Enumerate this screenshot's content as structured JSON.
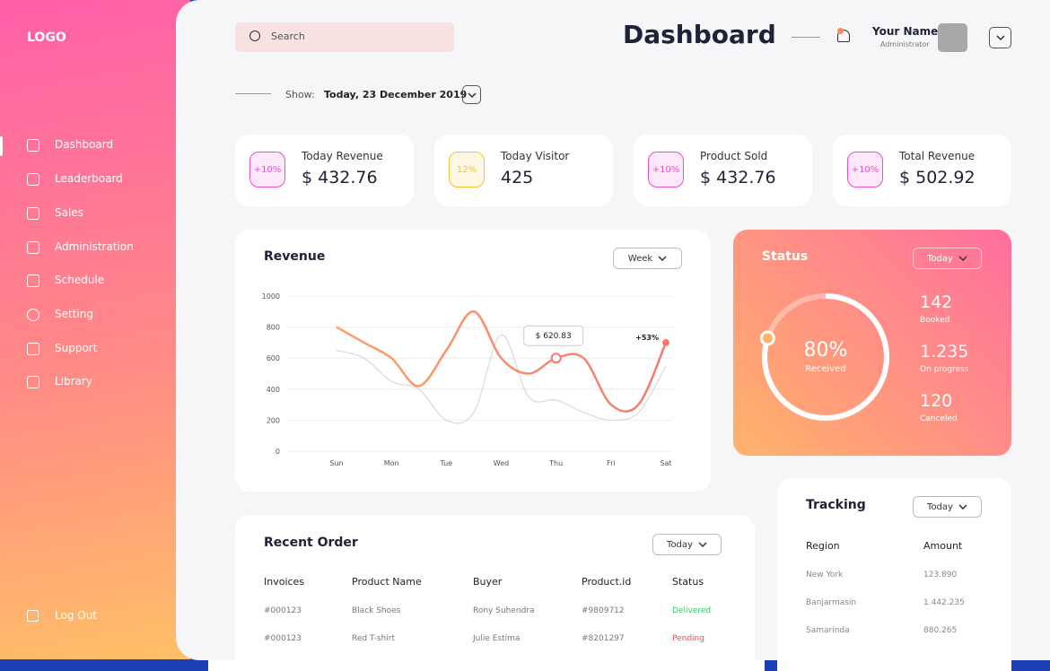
{
  "sidebar": {
    "logo": "LOGO",
    "menu": [
      "Dashboard",
      "Leaderboard",
      "Sales",
      "Administration",
      "Schedule",
      "Setting",
      "Support",
      "Library"
    ],
    "logout": "Log Out"
  },
  "header": {
    "search_placeholder": "Search",
    "title": "Dashboard",
    "user_name": "Your Name",
    "user_role": "Administrator",
    "show_label": "Show:",
    "show_date": "Today, 23 December 2019"
  },
  "stats": [
    {
      "badge": "+10%",
      "label": "Today Revenue",
      "value": "$ 432.76",
      "color": "#e84fcf"
    },
    {
      "badge": "12%",
      "label": "Today Visitor",
      "value": "425",
      "color": "#f2c230"
    },
    {
      "badge": "+10%",
      "label": "Product Sold",
      "value": "$ 432.76",
      "color": "#e84fcf"
    },
    {
      "badge": "+10%",
      "label": "Total Revenue",
      "value": "$ 502.92",
      "color": "#e84fcf"
    }
  ],
  "revenue": {
    "title": "Revenue",
    "filter": "Week",
    "chart_data": {
      "type": "line",
      "categories": [
        "Sun",
        null,
        "Mon",
        null,
        "Tue",
        null,
        "Wed",
        null,
        "Thu",
        null,
        "Fri",
        null,
        "Sat"
      ],
      "series": [
        {
          "color": "#f6786f",
          "values": [
            800,
            700,
            600,
            420,
            650,
            900,
            600,
            500,
            600,
            600,
            300,
            300,
            700
          ]
        },
        {
          "color": "#d9d9d9",
          "values": [
            650,
            600,
            450,
            400,
            200,
            250,
            750,
            350,
            330,
            250,
            200,
            250,
            550
          ]
        }
      ],
      "ylim": [
        0,
        1000
      ],
      "yticks": [
        0,
        200,
        400,
        600,
        800,
        1000
      ],
      "grid": true,
      "annotations": [
        {
          "text": "$ 620.83",
          "index": 8
        },
        {
          "text": "+53%",
          "index": 12
        }
      ]
    }
  },
  "status": {
    "title": "Status",
    "filter": "Today",
    "received": {
      "value": 80,
      "label": "80%"
    },
    "received_label": "Received",
    "items": [
      {
        "value": "142",
        "label": "Booked"
      },
      {
        "value": "1.235",
        "label": "On progress"
      },
      {
        "value": "120",
        "label": "Canceled"
      }
    ]
  },
  "tracking": {
    "title": "Tracking",
    "filter": "Today",
    "headers": [
      "Region",
      "Amount"
    ],
    "rows": [
      [
        "New York",
        "123.890"
      ],
      [
        "Banjarmasin",
        "1.442.235"
      ],
      [
        "Samarinda",
        "880.265"
      ]
    ]
  },
  "orders": {
    "title": "Recent Order",
    "filter": "Today",
    "headers": [
      "Invoices",
      "Product Name",
      "Buyer",
      "Product.id",
      "Status"
    ],
    "rows": [
      [
        "#000123",
        "Black Shoes",
        "Rony Suhendra",
        "#9809712",
        "Delivered"
      ],
      [
        "#000123",
        "Red T-shirt",
        "Julie Estima",
        "#8201297",
        "Pending"
      ]
    ]
  }
}
